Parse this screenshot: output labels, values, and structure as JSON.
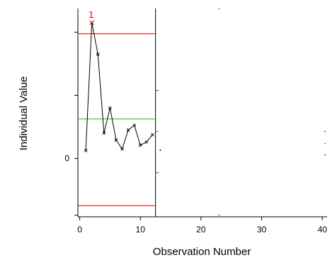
{
  "chart_data": {
    "type": "line",
    "title": "",
    "xlabel": "Observation Number",
    "ylabel": "Individual Value",
    "x_ticks": [
      0,
      10,
      20,
      30,
      40
    ],
    "x_tick_labels": [
      "0",
      "10",
      "20",
      "30",
      "40"
    ],
    "y_ticks": [
      -1.8,
      0,
      2,
      4
    ],
    "y_tick_labels": [
      "",
      "0",
      "",
      ""
    ],
    "xlim": [
      -0.3,
      40.8
    ],
    "ylim": [
      -1.85,
      4.75
    ],
    "series": [
      {
        "x": [
          1,
          2,
          3,
          4,
          5,
          6,
          7,
          8,
          9,
          10,
          11,
          12
        ],
        "y": [
          0.25,
          4.3,
          3.3,
          0.8,
          1.6,
          0.58,
          0.3,
          0.9,
          1.05,
          0.42,
          0.52,
          0.75
        ],
        "color": "#000000",
        "marker": "x"
      }
    ],
    "limits": [
      {
        "role": "ucl",
        "value": 3.95,
        "color": "#d40000"
      },
      {
        "role": "center",
        "value": 1.25,
        "color": "#00cc00"
      },
      {
        "role": "lcl",
        "value": -1.5,
        "color": "#d40000"
      }
    ],
    "flags": [
      {
        "x": 2,
        "y": 4.3,
        "label": "1",
        "color": "#d40000"
      }
    ],
    "divider_x": 12.5,
    "colors": {
      "ucl": "#d40000",
      "center": "#00cc00",
      "lcl": "#d40000",
      "series": "#000000"
    }
  }
}
